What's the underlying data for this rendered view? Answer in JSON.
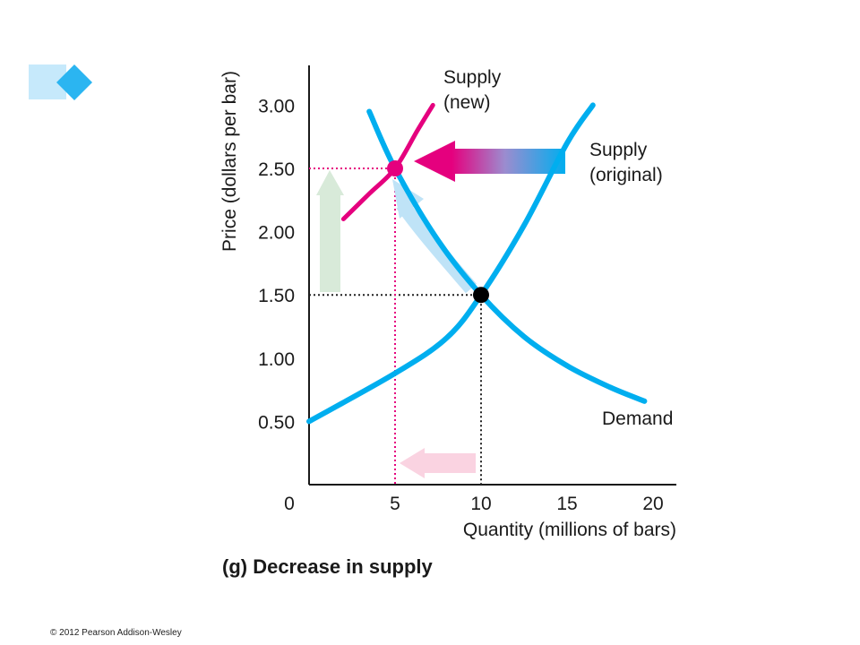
{
  "chart_data": {
    "type": "line",
    "title": "(g) Decrease in supply",
    "xlabel": "Quantity (millions of bars)",
    "ylabel": "Price (dollars per bar)",
    "xlim": [
      0,
      21
    ],
    "ylim": [
      0,
      3.4
    ],
    "x_ticks": [
      {
        "value": 5,
        "label": "5",
        "highlight": true
      },
      {
        "value": 10,
        "label": "10"
      },
      {
        "value": 15,
        "label": "15"
      },
      {
        "value": 20,
        "label": "20"
      }
    ],
    "y_ticks": [
      {
        "value": 0.5,
        "label": "0.50"
      },
      {
        "value": 1.0,
        "label": "1.00"
      },
      {
        "value": 1.5,
        "label": "1.50"
      },
      {
        "value": 2.0,
        "label": "2.00"
      },
      {
        "value": 2.5,
        "label": "2.50",
        "highlight": true
      },
      {
        "value": 3.0,
        "label": "3.00"
      }
    ],
    "origin_label": "0",
    "series": [
      {
        "key": "demand",
        "labels": [
          "Demand"
        ],
        "color": "#00aeef",
        "points": [
          [
            3.5,
            2.95
          ],
          [
            5,
            2.5
          ],
          [
            7.5,
            1.93
          ],
          [
            10,
            1.5
          ],
          [
            12.5,
            1.17
          ],
          [
            15,
            0.94
          ],
          [
            17.5,
            0.77
          ],
          [
            19.5,
            0.66
          ]
        ]
      },
      {
        "key": "supply_original",
        "labels": [
          "Supply",
          "(original)"
        ],
        "color": "#00aeef",
        "points": [
          [
            0,
            0.5
          ],
          [
            5,
            0.88
          ],
          [
            8,
            1.16
          ],
          [
            10,
            1.5
          ],
          [
            12.5,
            2.05
          ],
          [
            15,
            2.7
          ],
          [
            16.5,
            3.0
          ]
        ]
      },
      {
        "key": "supply_new",
        "labels": [
          "Supply",
          "(new)"
        ],
        "color": "#e5007e",
        "points": [
          [
            2,
            2.1
          ],
          [
            3.5,
            2.3
          ],
          [
            5,
            2.5
          ],
          [
            6.3,
            2.8
          ],
          [
            7.2,
            3.0
          ]
        ]
      }
    ],
    "equilibria": [
      {
        "x": 10,
        "y": 1.5,
        "color": "#000000"
      },
      {
        "x": 5,
        "y": 2.5,
        "color": "#e5007e"
      }
    ],
    "colors": {
      "demand": "#00aeef",
      "supply_new": "#e5007e",
      "price_up_arrow": "#d8ead9",
      "quantity_down_arrow": "#fad3e1"
    }
  },
  "copyright": "© 2012 Pearson Addison-Wesley"
}
